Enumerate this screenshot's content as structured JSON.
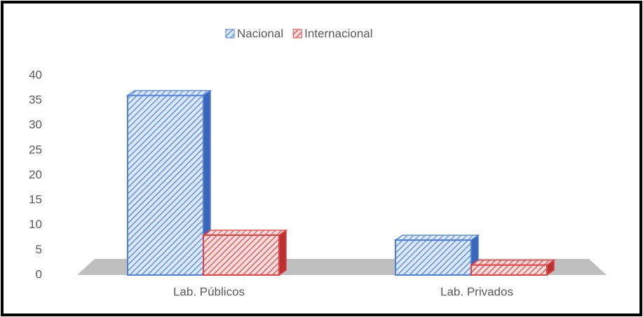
{
  "chart_data": {
    "type": "bar3d",
    "categories": [
      "Lab. Públicos",
      "Lab. Privados"
    ],
    "series": [
      {
        "name": "Nacional",
        "color": "#4a7fe0",
        "values": [
          36,
          7
        ]
      },
      {
        "name": "Internacional",
        "color": "#e84040",
        "values": [
          8,
          2
        ]
      }
    ],
    "ylim": [
      0,
      40
    ],
    "yticks": [
      0,
      5,
      10,
      15,
      20,
      25,
      30,
      35,
      40
    ],
    "legend": "top"
  }
}
